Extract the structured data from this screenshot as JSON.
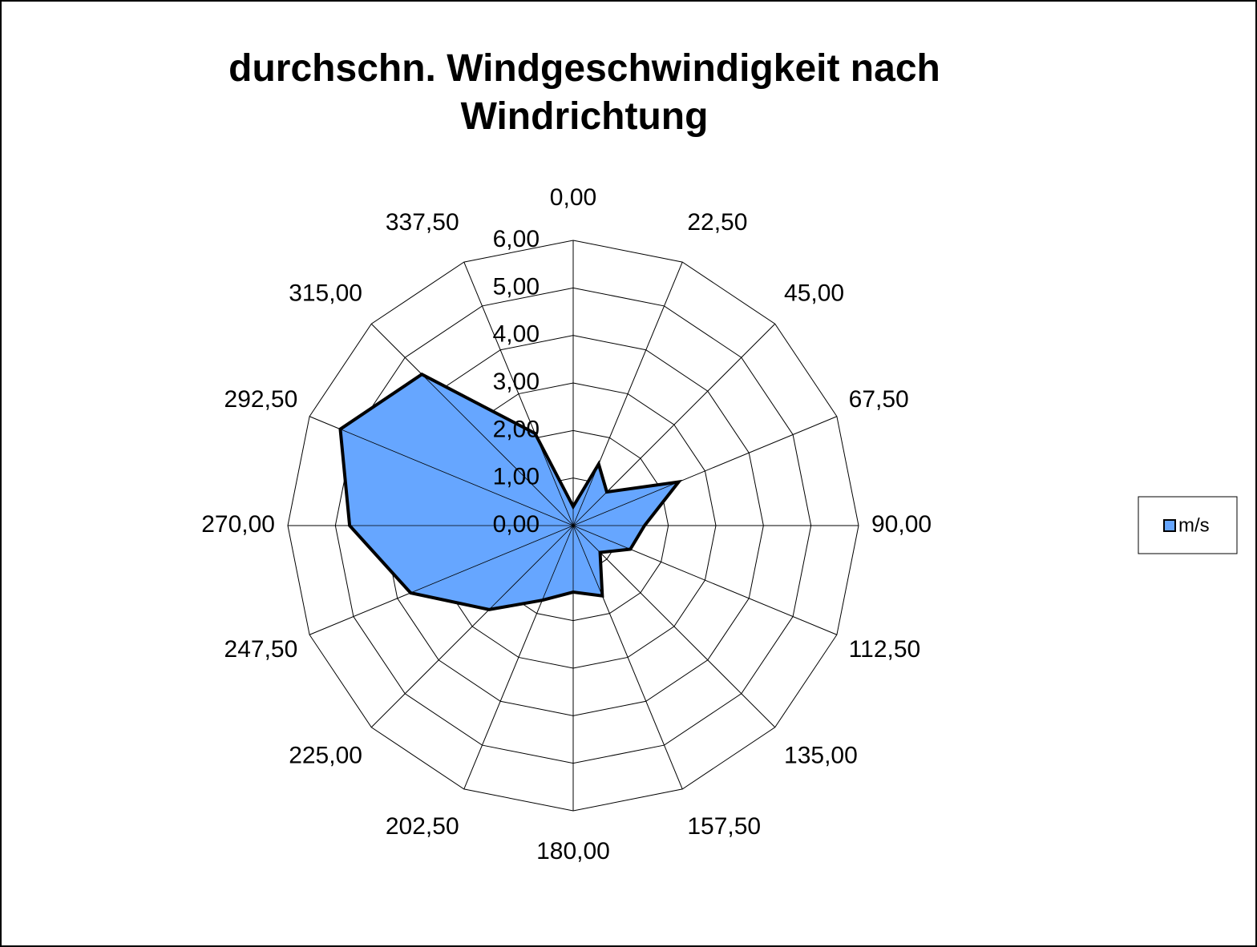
{
  "chart_data": {
    "type": "radar",
    "title": "durchschn. Windgeschwindigkeit nach Windrichtung",
    "categories": [
      "0,00",
      "22,50",
      "45,00",
      "67,50",
      "90,00",
      "112,50",
      "135,00",
      "157,50",
      "180,00",
      "202,50",
      "225,00",
      "247,50",
      "270,00",
      "292,50",
      "315,00",
      "337,50"
    ],
    "series": [
      {
        "name": "m/s",
        "color": "#66a6ff",
        "values": [
          0.4,
          1.4,
          1.0,
          2.4,
          1.5,
          1.3,
          0.8,
          1.6,
          1.4,
          1.7,
          2.5,
          3.7,
          4.7,
          5.3,
          4.5,
          2.1
        ]
      }
    ],
    "ylim": [
      0,
      6
    ],
    "yticks": [
      {
        "value": 0,
        "label": "0,00"
      },
      {
        "value": 1,
        "label": "1,00"
      },
      {
        "value": 2,
        "label": "2,00"
      },
      {
        "value": 3,
        "label": "3,00"
      },
      {
        "value": 4,
        "label": "4,00"
      },
      {
        "value": 5,
        "label": "5,00"
      },
      {
        "value": 6,
        "label": "6,00"
      }
    ],
    "grid": true,
    "legend": "right"
  }
}
